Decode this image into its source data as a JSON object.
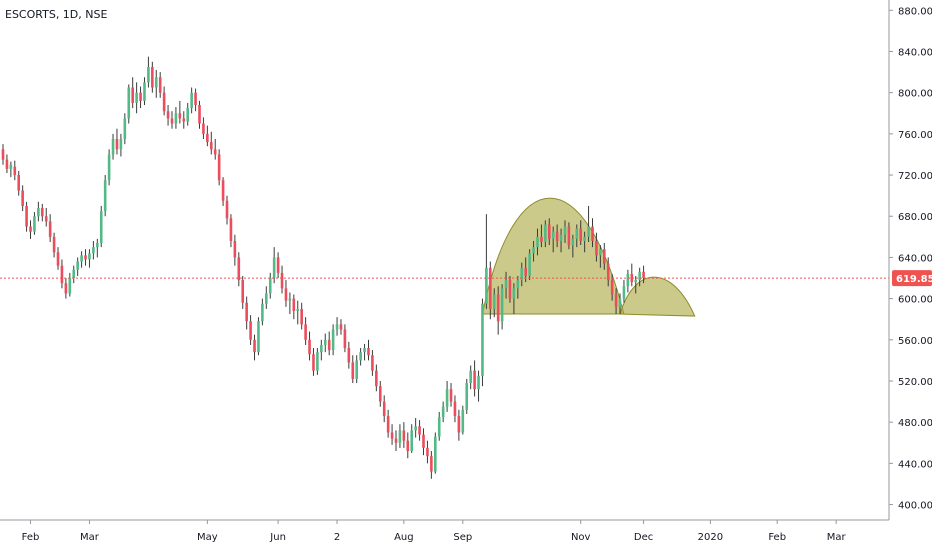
{
  "header": {
    "symbol_title": "ESCORTS, 1D, NSE"
  },
  "colors": {
    "up": "#53b987",
    "down": "#eb4d5c",
    "pattern_fill": "#a9a73c",
    "price_line": "#ef5350",
    "axis": "#131722"
  },
  "price_tag": {
    "value": "619.85"
  },
  "chart_data": {
    "type": "candlestick",
    "title": "ESCORTS, 1D, NSE",
    "xlabel": "",
    "ylabel": "",
    "ylim": [
      385,
      890
    ],
    "y_ticks": [
      "880.00",
      "840.00",
      "800.00",
      "760.00",
      "720.00",
      "680.00",
      "640.00",
      "600.00",
      "560.00",
      "520.00",
      "480.00",
      "440.00",
      "400.00"
    ],
    "x_ticks": [
      "Feb",
      "Mar",
      "May",
      "Jun",
      "2",
      "Aug",
      "Sep",
      "Nov",
      "Dec",
      "2020",
      "Feb",
      "Mar"
    ],
    "last_price": 619.85,
    "pattern": {
      "type": "cup-and-handle",
      "cup": {
        "start_index": 122,
        "end_index": 158,
        "base": 585,
        "peak": 697
      },
      "handle": {
        "start_index": 157,
        "end_index": 176,
        "base": 585,
        "peak": 622
      }
    },
    "series": [
      {
        "values": [
          [
            745,
            750,
            730,
            735
          ],
          [
            735,
            740,
            722,
            726
          ],
          [
            726,
            733,
            718,
            730
          ],
          [
            728,
            734,
            715,
            720
          ],
          [
            720,
            724,
            700,
            705
          ],
          [
            705,
            710,
            685,
            690
          ],
          [
            690,
            694,
            665,
            670
          ],
          [
            670,
            676,
            658,
            665
          ],
          [
            665,
            684,
            662,
            680
          ],
          [
            680,
            694,
            675,
            688
          ],
          [
            688,
            692,
            675,
            680
          ],
          [
            680,
            688,
            670,
            675
          ],
          [
            675,
            682,
            655,
            660
          ],
          [
            660,
            664,
            640,
            645
          ],
          [
            645,
            650,
            628,
            632
          ],
          [
            632,
            638,
            610,
            615
          ],
          [
            615,
            620,
            600,
            605
          ],
          [
            605,
            625,
            602,
            620
          ],
          [
            620,
            632,
            615,
            628
          ],
          [
            628,
            640,
            622,
            636
          ],
          [
            636,
            646,
            630,
            642
          ],
          [
            642,
            648,
            632,
            638
          ],
          [
            638,
            648,
            630,
            644
          ],
          [
            644,
            656,
            638,
            650
          ],
          [
            650,
            658,
            640,
            654
          ],
          [
            654,
            690,
            650,
            685
          ],
          [
            685,
            720,
            680,
            715
          ],
          [
            715,
            745,
            710,
            740
          ],
          [
            740,
            760,
            735,
            755
          ],
          [
            755,
            765,
            740,
            745
          ],
          [
            745,
            760,
            738,
            755
          ],
          [
            755,
            780,
            750,
            775
          ],
          [
            775,
            808,
            770,
            805
          ],
          [
            805,
            815,
            785,
            790
          ],
          [
            790,
            810,
            780,
            800
          ],
          [
            800,
            806,
            785,
            792
          ],
          [
            792,
            815,
            788,
            810
          ],
          [
            810,
            835,
            805,
            825
          ],
          [
            825,
            830,
            800,
            805
          ],
          [
            805,
            822,
            795,
            815
          ],
          [
            815,
            820,
            795,
            800
          ],
          [
            800,
            806,
            778,
            782
          ],
          [
            782,
            788,
            768,
            775
          ],
          [
            775,
            782,
            765,
            770
          ],
          [
            770,
            786,
            765,
            780
          ],
          [
            780,
            792,
            770,
            775
          ],
          [
            775,
            782,
            765,
            772
          ],
          [
            772,
            790,
            768,
            785
          ],
          [
            785,
            805,
            780,
            800
          ],
          [
            800,
            804,
            782,
            788
          ],
          [
            788,
            792,
            765,
            770
          ],
          [
            770,
            776,
            755,
            760
          ],
          [
            760,
            768,
            748,
            752
          ],
          [
            752,
            762,
            740,
            745
          ],
          [
            745,
            755,
            735,
            740
          ],
          [
            740,
            745,
            710,
            715
          ],
          [
            715,
            718,
            690,
            695
          ],
          [
            695,
            700,
            672,
            678
          ],
          [
            678,
            682,
            650,
            656
          ],
          [
            656,
            662,
            632,
            640
          ],
          [
            640,
            645,
            612,
            618
          ],
          [
            618,
            622,
            590,
            596
          ],
          [
            596,
            602,
            570,
            578
          ],
          [
            578,
            584,
            555,
            560
          ],
          [
            560,
            565,
            540,
            548
          ],
          [
            548,
            582,
            545,
            578
          ],
          [
            578,
            600,
            574,
            595
          ],
          [
            595,
            612,
            590,
            605
          ],
          [
            605,
            625,
            600,
            620
          ],
          [
            620,
            650,
            615,
            640
          ],
          [
            640,
            645,
            620,
            625
          ],
          [
            625,
            632,
            605,
            610
          ],
          [
            610,
            618,
            592,
            598
          ],
          [
            598,
            606,
            585,
            600
          ],
          [
            600,
            604,
            580,
            588
          ],
          [
            588,
            598,
            575,
            590
          ],
          [
            590,
            596,
            570,
            575
          ],
          [
            575,
            582,
            555,
            560
          ],
          [
            560,
            568,
            540,
            546
          ],
          [
            546,
            552,
            525,
            530
          ],
          [
            530,
            552,
            526,
            548
          ],
          [
            548,
            560,
            540,
            555
          ],
          [
            555,
            566,
            548,
            560
          ],
          [
            560,
            568,
            545,
            550
          ],
          [
            550,
            575,
            545,
            570
          ],
          [
            570,
            582,
            564,
            575
          ],
          [
            575,
            580,
            565,
            570
          ],
          [
            570,
            575,
            548,
            552
          ],
          [
            552,
            558,
            532,
            538
          ],
          [
            538,
            545,
            518,
            522
          ],
          [
            522,
            545,
            518,
            540
          ],
          [
            540,
            552,
            535,
            548
          ],
          [
            548,
            556,
            540,
            552
          ],
          [
            552,
            560,
            540,
            545
          ],
          [
            545,
            550,
            525,
            530
          ],
          [
            530,
            536,
            510,
            515
          ],
          [
            515,
            520,
            495,
            500
          ],
          [
            500,
            506,
            480,
            486
          ],
          [
            486,
            492,
            465,
            470
          ],
          [
            470,
            478,
            458,
            464
          ],
          [
            464,
            472,
            452,
            460
          ],
          [
            460,
            478,
            455,
            472
          ],
          [
            472,
            480,
            455,
            462
          ],
          [
            462,
            470,
            445,
            452
          ],
          [
            452,
            478,
            450,
            472
          ],
          [
            472,
            484,
            465,
            476
          ],
          [
            476,
            482,
            462,
            468
          ],
          [
            468,
            474,
            448,
            455
          ],
          [
            455,
            462,
            440,
            447
          ],
          [
            447,
            452,
            425,
            432
          ],
          [
            432,
            470,
            430,
            466
          ],
          [
            466,
            490,
            462,
            485
          ],
          [
            485,
            500,
            480,
            495
          ],
          [
            495,
            520,
            490,
            512
          ],
          [
            512,
            518,
            495,
            500
          ],
          [
            500,
            506,
            480,
            486
          ],
          [
            486,
            492,
            462,
            470
          ],
          [
            470,
            496,
            468,
            492
          ],
          [
            492,
            522,
            488,
            518
          ],
          [
            518,
            535,
            512,
            530
          ],
          [
            530,
            540,
            505,
            512
          ],
          [
            512,
            530,
            500,
            525
          ],
          [
            525,
            600,
            515,
            595
          ],
          [
            595,
            682,
            590,
            630
          ],
          [
            630,
            636,
            580,
            590
          ],
          [
            590,
            610,
            582,
            604
          ],
          [
            604,
            612,
            565,
            578
          ],
          [
            578,
            614,
            570,
            610
          ],
          [
            610,
            626,
            600,
            618
          ],
          [
            618,
            622,
            596,
            600
          ],
          [
            600,
            615,
            585,
            610
          ],
          [
            610,
            622,
            600,
            618
          ],
          [
            618,
            635,
            612,
            630
          ],
          [
            630,
            640,
            616,
            622
          ],
          [
            622,
            648,
            618,
            644
          ],
          [
            644,
            656,
            636,
            650
          ],
          [
            650,
            668,
            642,
            660
          ],
          [
            660,
            672,
            650,
            655
          ],
          [
            655,
            676,
            650,
            672
          ],
          [
            672,
            678,
            652,
            658
          ],
          [
            658,
            670,
            645,
            665
          ],
          [
            665,
            672,
            650,
            656
          ],
          [
            656,
            668,
            645,
            662
          ],
          [
            662,
            676,
            654,
            670
          ],
          [
            670,
            674,
            648,
            652
          ],
          [
            652,
            662,
            640,
            658
          ],
          [
            658,
            672,
            650,
            668
          ],
          [
            668,
            676,
            652,
            656
          ],
          [
            656,
            665,
            645,
            660
          ],
          [
            660,
            690,
            655,
            670
          ],
          [
            670,
            678,
            650,
            656
          ],
          [
            656,
            664,
            636,
            642
          ],
          [
            642,
            652,
            630,
            648
          ],
          [
            648,
            654,
            628,
            634
          ],
          [
            634,
            640,
            612,
            618
          ],
          [
            618,
            624,
            598,
            604
          ],
          [
            604,
            610,
            585,
            592
          ],
          [
            592,
            605,
            585,
            600
          ],
          [
            600,
            618,
            596,
            612
          ],
          [
            612,
            628,
            606,
            624
          ],
          [
            624,
            634,
            612,
            616
          ],
          [
            616,
            622,
            605,
            618
          ],
          [
            618,
            630,
            612,
            626
          ],
          [
            626,
            632,
            615,
            620
          ]
        ]
      }
    ]
  }
}
